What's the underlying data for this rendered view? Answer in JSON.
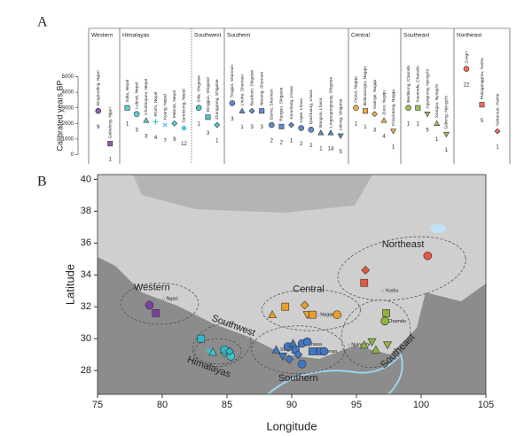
{
  "chart_data": [
    {
      "type": "strip",
      "panel": "A",
      "ylabel": "Calibrated years BP",
      "ylim": [
        -600,
        8100
      ],
      "yticks": [
        0,
        1000,
        2000,
        3000,
        4000,
        5000
      ],
      "series": [
        {
          "name": "Western",
          "color": "#7b3fa0",
          "sites": [
            "Dingmoding, Ngari",
            "Gebulong, Ngari"
          ],
          "values": [
            2800,
            700
          ],
          "counts": [
            9,
            1
          ],
          "markers": [
            "circle",
            "square"
          ]
        },
        {
          "name": "Himalayas",
          "color": "#3fc6cf",
          "sites": [
            "Sulla, Nepal",
            "Lubrak, Nepal",
            "Chokhopani, Nepal",
            "Rhirhi, Nepal",
            "Kyang, Nepal",
            "Mebrak, Nepal",
            "Samdzong, Nepal"
          ],
          "values": [
            3000,
            2600,
            2200,
            2100,
            1900,
            2000,
            1700
          ],
          "counts": [
            1,
            3,
            3,
            4,
            7,
            9,
            12
          ],
          "markers": [
            "square",
            "circle",
            "triangle",
            "plus",
            "x",
            "diamond",
            "asterisk"
          ]
        },
        {
          "name": "Southwest",
          "color": "#2fb8c4",
          "sites": [
            "Sitla, Shigatse",
            "Dingguo, Shigatse",
            "Zhongpang, Shigatse"
          ],
          "values": [
            3000,
            2400,
            1900
          ],
          "counts": [
            1,
            3,
            1
          ],
          "markers": [
            "circle",
            "square",
            "diamond"
          ]
        },
        {
          "name": "Southern",
          "color": "#3f78c4",
          "sites": [
            "Tingjun, Shannan",
            "Lhuhe, Shannan",
            "Bandonti, Shigatse",
            "Nezang, Shannan",
            "Dama, Shannan",
            "Ranguo, Shigatse",
            "Jiarunlang, Lhasa",
            "Lajue, Lhasa",
            "Qiazhuang, Lhasa",
            "Bangxiu, Lhasa",
            "Lingangongsang, Shigatse",
            "Lelong, Shigatse"
          ],
          "values": [
            3300,
            2800,
            2800,
            2800,
            1900,
            1800,
            1900,
            1700,
            1600,
            1400,
            1400,
            1200
          ],
          "counts": [
            3,
            1,
            3,
            3,
            2,
            2,
            1,
            2,
            2,
            1,
            14,
            5
          ],
          "markers": [
            "circle",
            "triangle",
            "diamond",
            "square",
            "circle",
            "square",
            "diamond",
            "circle",
            "circle",
            "triangle",
            "triangle",
            "invtriangle"
          ]
        },
        {
          "name": "Central",
          "color": "#e8a02a",
          "sites": [
            "Ouzui, Nagqu",
            "Bulanaongru, Nagqu",
            "Gaerge, Nagqu",
            "Zuoo, Nagqu",
            "Chaxiutang, Nagqu"
          ],
          "values": [
            3000,
            2800,
            2600,
            2200,
            1500
          ],
          "counts": [
            1,
            1,
            3,
            4,
            1
          ],
          "markers": [
            "circle",
            "square",
            "diamond",
            "triangle",
            "invtriangle"
          ]
        },
        {
          "name": "Southeast",
          "color": "#8cb43c",
          "sites": [
            "Beidikong, Chamdo",
            "Xiaoenda, Chamdo",
            "Agangrong, Nyingchi",
            "Xiangxu, Nyingchi",
            "Gdiving, Nyingchi"
          ],
          "values": [
            3000,
            3000,
            2600,
            2000,
            1300
          ],
          "counts": [
            1,
            1,
            5,
            1,
            1
          ],
          "markers": [
            "circle",
            "square",
            "invtriangle",
            "triangle",
            "invtriangle"
          ]
        },
        {
          "name": "Northeast",
          "color": "#e8553f",
          "sites": [
            "Zongri",
            "Pukaganggma, Yushu",
            "Sebarcun, Yushu"
          ],
          "values": [
            5500,
            3200,
            1500
          ],
          "counts": [
            22,
            5,
            1
          ],
          "markers": [
            "circle",
            "square",
            "diamond"
          ]
        }
      ]
    },
    {
      "type": "map",
      "panel": "B",
      "xlabel": "Longitude",
      "ylabel": "Latitude",
      "xlim": [
        75,
        105
      ],
      "ylim": [
        26.5,
        40.3
      ],
      "xticks": [
        75,
        80,
        85,
        90,
        95,
        100,
        105
      ],
      "yticks": [
        28,
        30,
        32,
        34,
        36,
        38,
        40
      ],
      "cities": {
        "names": [
          "Ngari",
          "Lhasa",
          "Shigatse",
          "Shannan",
          "Nagqu",
          "Nyingchi",
          "Chamdo",
          "Yushu"
        ],
        "x": [
          80.1,
          91.1,
          88.9,
          91.8,
          92.0,
          94.4,
          97.2,
          97.0
        ],
        "y": [
          32.5,
          29.65,
          29.3,
          29.2,
          31.5,
          29.6,
          31.1,
          33.0
        ]
      },
      "series": [
        {
          "name": "Western",
          "color": "#7b3fa0",
          "x": [
            79,
            79.5
          ],
          "y": [
            32.1,
            31.6
          ],
          "markers": [
            "circle",
            "square"
          ]
        },
        {
          "name": "Himalayas",
          "color": "#3fc6cf",
          "x": [
            83.7,
            83.9,
            85.3,
            84.8
          ],
          "y": [
            29.2,
            29.15,
            28.9,
            29.1
          ],
          "markers": [
            "asterisk",
            "triangle",
            "circle",
            "diamond"
          ]
        },
        {
          "name": "Southwest",
          "color": "#2fb8c4",
          "x": [
            83,
            84.8,
            85.2
          ],
          "y": [
            30,
            29.3,
            29.2
          ],
          "markers": [
            "square",
            "circle",
            "diamond"
          ]
        },
        {
          "name": "Southern",
          "color": "#3f78c4",
          "x": [
            88.8,
            89.3,
            89.7,
            90.3,
            89.8,
            90.8,
            91.2,
            91.6,
            90.1,
            90.5,
            90.8,
            92.2,
            92.5
          ],
          "y": [
            29.3,
            28.9,
            29.5,
            29.3,
            28.7,
            29.7,
            29.8,
            29.2,
            29.7,
            29.0,
            28.4,
            29.2,
            29.2
          ],
          "markers": [
            "triangle",
            "invtriangle",
            "circle",
            "square",
            "diamond",
            "circle",
            "circle",
            "square",
            "triangle",
            "diamond",
            "circle",
            "square",
            "circle"
          ]
        },
        {
          "name": "Central",
          "color": "#e8a02a",
          "x": [
            88.5,
            89.5,
            91,
            91.2,
            91.6,
            93.5
          ],
          "y": [
            31.5,
            32,
            32.1,
            31.5,
            31.5,
            31.5
          ],
          "markers": [
            "triangle",
            "square",
            "diamond",
            "invtriangle",
            "square",
            "circle"
          ]
        },
        {
          "name": "Southeast",
          "color": "#8cb43c",
          "x": [
            97.3,
            97.2,
            96.2,
            95.6,
            96.5,
            97.4
          ],
          "y": [
            31.6,
            31.1,
            29.8,
            29.6,
            29.3,
            29.6
          ],
          "markers": [
            "square",
            "circle",
            "invtriangle",
            "triangle",
            "triangle",
            "invtriangle"
          ]
        },
        {
          "name": "Northeast",
          "color": "#e8553f",
          "x": [
            100.5,
            95.7,
            95.6
          ],
          "y": [
            35.2,
            34.3,
            33.5
          ],
          "markers": [
            "circle",
            "diamond",
            "square"
          ]
        }
      ]
    }
  ]
}
